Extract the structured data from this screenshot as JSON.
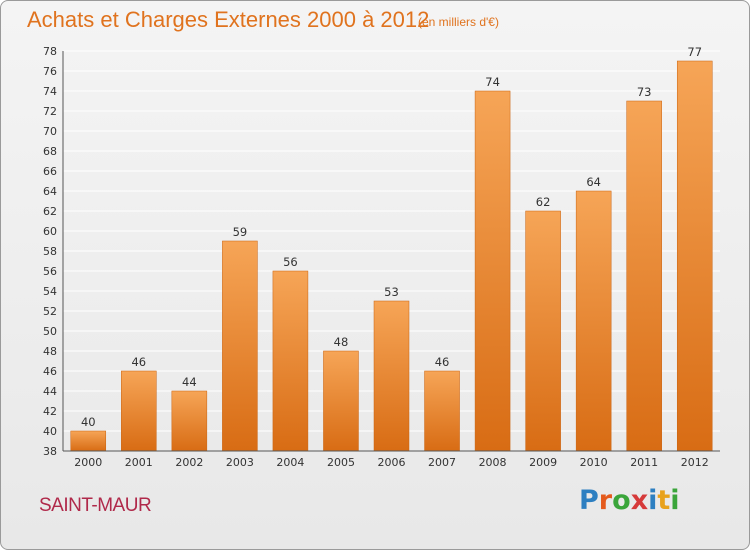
{
  "header": {
    "title": "Achats et Charges Externes 2000 à 2012",
    "subtitle": "(en milliers d'€)"
  },
  "footer": {
    "place": "SAINT-MAUR",
    "logo_text": "Proxiti",
    "logo_colors": [
      "#2d7fc1",
      "#e45a1c",
      "#3aa53a",
      "#d63a3a",
      "#2d7fc1",
      "#e8a21c",
      "#3aa53a"
    ]
  },
  "colors": {
    "bar_top": "#f6a557",
    "bar_bottom": "#d86c14",
    "grid": "#ffffff",
    "axis": "#555555"
  },
  "chart_data": {
    "type": "bar",
    "title": "Achats et Charges Externes 2000 à 2012",
    "subtitle": "(en milliers d'€)",
    "categories": [
      "2000",
      "2001",
      "2002",
      "2003",
      "2004",
      "2005",
      "2006",
      "2007",
      "2008",
      "2009",
      "2010",
      "2011",
      "2012"
    ],
    "values": [
      40,
      46,
      44,
      59,
      56,
      48,
      53,
      46,
      74,
      62,
      64,
      73,
      77
    ],
    "ylim": [
      38,
      78
    ],
    "yticks": [
      38,
      40,
      42,
      44,
      46,
      48,
      50,
      52,
      54,
      56,
      58,
      60,
      62,
      64,
      66,
      68,
      70,
      72,
      74,
      76,
      78
    ],
    "xlabel": "",
    "ylabel": "",
    "grid": true,
    "data_labels": true
  }
}
